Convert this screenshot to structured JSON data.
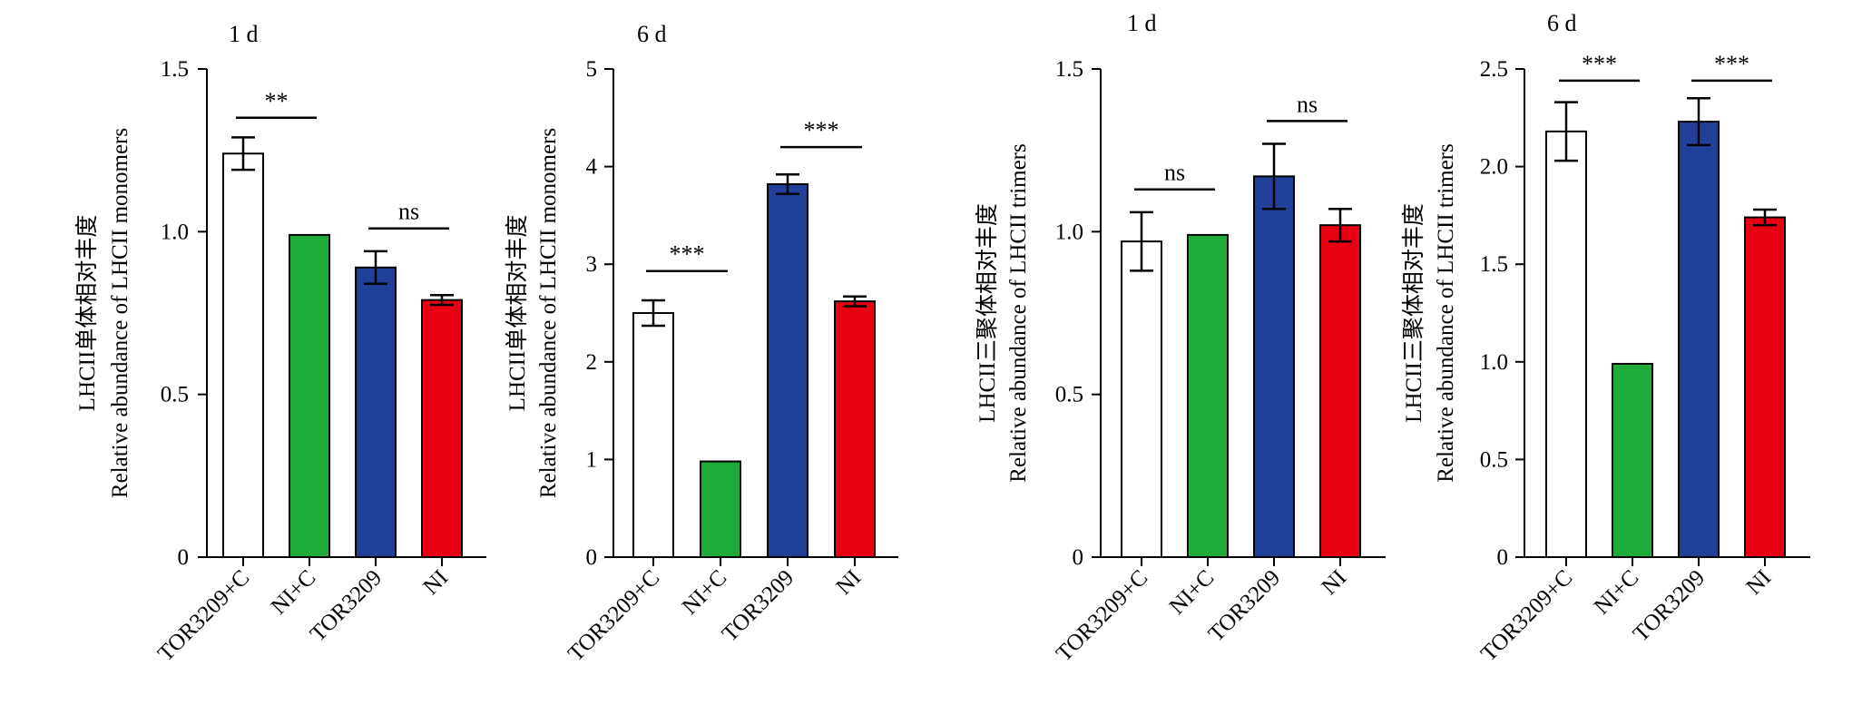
{
  "chart_data": [
    {
      "type": "bar",
      "title": "1 d",
      "ylabel_cn": "LHCII单体相对丰度",
      "ylabel": "Relative abundance of LHCII monomers",
      "categories": [
        "TOR3209+C",
        "NI+C",
        "TOR3209",
        "NI"
      ],
      "values": [
        1.24,
        0.99,
        0.89,
        0.79
      ],
      "errors": [
        0.05,
        0,
        0.05,
        0.015
      ],
      "colors": [
        "#ffffff",
        "#1fab3a",
        "#21409a",
        "#e60012"
      ],
      "ylim": [
        0,
        1.5
      ],
      "yticks": [
        "0",
        "0.5",
        "1.0",
        "1.5"
      ],
      "ytick_values": [
        0,
        0.5,
        1.0,
        1.5
      ],
      "significance": [
        {
          "from": 0,
          "to": 1,
          "label": "**",
          "y": 1.35
        },
        {
          "from": 2,
          "to": 3,
          "label": "ns",
          "y": 1.01
        }
      ]
    },
    {
      "type": "bar",
      "title": "6 d",
      "ylabel_cn": "LHCII单体相对丰度",
      "ylabel": "Relative abundance of LHCII monomers",
      "categories": [
        "TOR3209+C",
        "NI+C",
        "TOR3209",
        "NI"
      ],
      "values": [
        2.5,
        0.98,
        3.82,
        2.62
      ],
      "errors": [
        0.13,
        0,
        0.1,
        0.05
      ],
      "colors": [
        "#ffffff",
        "#1fab3a",
        "#21409a",
        "#e60012"
      ],
      "ylim": [
        0,
        5
      ],
      "yticks": [
        "0",
        "1",
        "2",
        "3",
        "4",
        "5"
      ],
      "ytick_values": [
        0,
        1,
        2,
        3,
        4,
        5
      ],
      "significance": [
        {
          "from": 0,
          "to": 1,
          "label": "***",
          "y": 2.93
        },
        {
          "from": 2,
          "to": 3,
          "label": "***",
          "y": 4.2
        }
      ]
    },
    {
      "type": "bar",
      "title": "1 d",
      "ylabel_cn": "LHCII三聚体相对丰度",
      "ylabel": "Relative abundance of LHCII trimers",
      "categories": [
        "TOR3209+C",
        "NI+C",
        "TOR3209",
        "NI"
      ],
      "values": [
        0.97,
        0.99,
        1.17,
        1.02
      ],
      "errors": [
        0.09,
        0,
        0.1,
        0.05
      ],
      "colors": [
        "#ffffff",
        "#1fab3a",
        "#21409a",
        "#e60012"
      ],
      "ylim": [
        0,
        1.5
      ],
      "yticks": [
        "0",
        "0.5",
        "1.0",
        "1.5"
      ],
      "ytick_values": [
        0,
        0.5,
        1.0,
        1.5
      ],
      "significance": [
        {
          "from": 0,
          "to": 1,
          "label": "ns",
          "y": 1.13
        },
        {
          "from": 2,
          "to": 3,
          "label": "ns",
          "y": 1.34
        }
      ]
    },
    {
      "type": "bar",
      "title": "6 d",
      "ylabel_cn": "LHCII三聚体相对丰度",
      "ylabel": "Relative abundance of LHCII trimers",
      "categories": [
        "TOR3209+C",
        "NI+C",
        "TOR3209",
        "NI"
      ],
      "values": [
        2.18,
        0.99,
        2.23,
        1.74
      ],
      "errors": [
        0.15,
        0,
        0.12,
        0.04
      ],
      "colors": [
        "#ffffff",
        "#1fab3a",
        "#21409a",
        "#e60012"
      ],
      "ylim": [
        0,
        2.5
      ],
      "yticks": [
        "0",
        "0.5",
        "1.0",
        "1.5",
        "2.0",
        "2.5"
      ],
      "ytick_values": [
        0,
        0.5,
        1.0,
        1.5,
        2.0,
        2.5
      ],
      "significance": [
        {
          "from": 0,
          "to": 1,
          "label": "***",
          "y": 2.44
        },
        {
          "from": 2,
          "to": 3,
          "label": "***",
          "y": 2.44
        }
      ]
    }
  ]
}
